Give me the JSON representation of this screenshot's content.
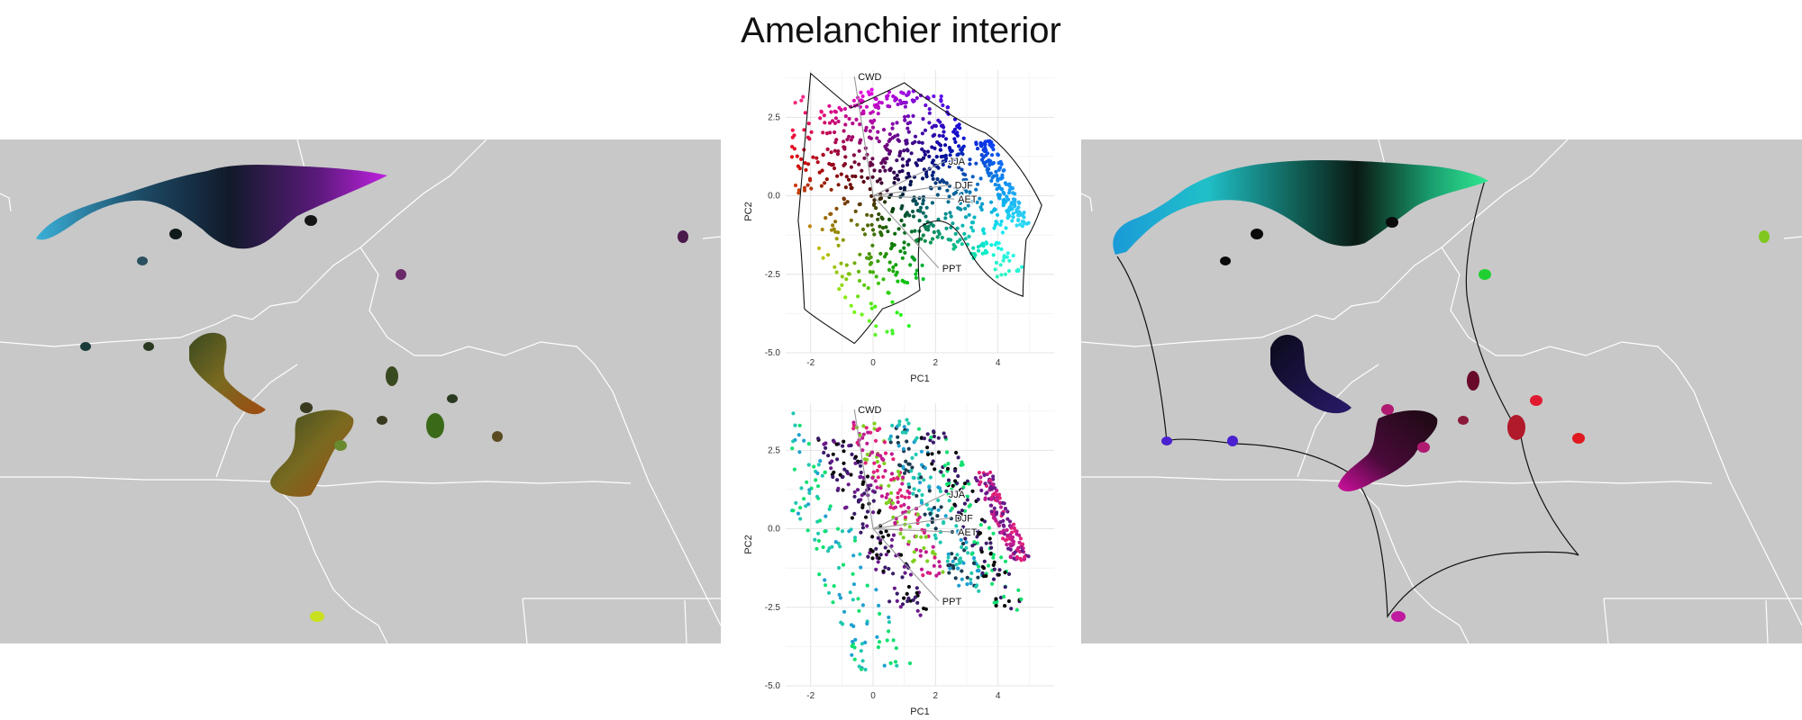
{
  "title": "Amelanchier interior",
  "colors": {
    "map_bg": "#c8c8c8",
    "border": "#ffffff",
    "grid": "#e6e6e6"
  },
  "chart_data": [
    {
      "type": "scatter",
      "panel": "pca-top",
      "xlabel": "PC1",
      "ylabel": "PC2",
      "xlim": [
        -2.8,
        5.8
      ],
      "ylim": [
        -5.0,
        4.0
      ],
      "xticks": [
        -2,
        0,
        2,
        4
      ],
      "yticks": [
        2.5,
        0.0,
        -2.5,
        -5.0
      ],
      "xtick_labels": [
        "-2",
        "0",
        "2",
        "4"
      ],
      "ytick_labels": [
        "2.5",
        "0.0",
        "-2.5",
        "-5.0"
      ],
      "grid": true,
      "hull_outline": true,
      "vectors": [
        {
          "name": "CWD",
          "x": -0.6,
          "y": 3.8
        },
        {
          "name": "JJA",
          "x": 2.3,
          "y": 1.1
        },
        {
          "name": "DJF",
          "x": 2.5,
          "y": 0.35
        },
        {
          "name": "AET",
          "x": 2.6,
          "y": -0.1
        },
        {
          "name": "PPT",
          "x": 2.1,
          "y": -2.3
        }
      ]
    },
    {
      "type": "scatter",
      "panel": "pca-bottom",
      "xlabel": "PC1",
      "ylabel": "PC2",
      "xlim": [
        -2.8,
        5.8
      ],
      "ylim": [
        -5.0,
        4.0
      ],
      "xticks": [
        -2,
        0,
        2,
        4
      ],
      "yticks": [
        2.5,
        0.0,
        -2.5,
        -5.0
      ],
      "xtick_labels": [
        "-2",
        "0",
        "2",
        "4"
      ],
      "ytick_labels": [
        "2.5",
        "0.0",
        "-2.5",
        "-5.0"
      ],
      "grid": true,
      "hull_outline": false,
      "vectors": [
        {
          "name": "CWD",
          "x": -0.6,
          "y": 3.8
        },
        {
          "name": "JJA",
          "x": 2.3,
          "y": 1.1
        },
        {
          "name": "DJF",
          "x": 2.5,
          "y": 0.35
        },
        {
          "name": "AET",
          "x": 2.6,
          "y": -0.1
        },
        {
          "name": "PPT",
          "x": 2.1,
          "y": -2.3
        }
      ]
    }
  ]
}
